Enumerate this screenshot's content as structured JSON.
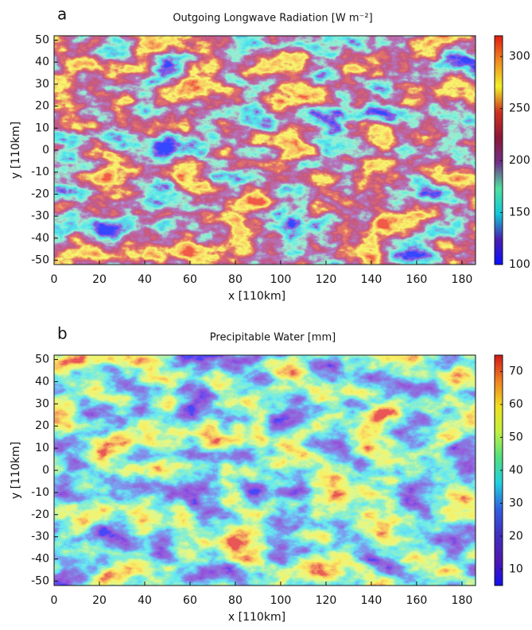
{
  "chart_data": [
    {
      "type": "heatmap",
      "panel_label": "a",
      "title": "Outgoing Longwave Radiation [W m⁻²]",
      "x_label": "x [110km]",
      "y_label": "y [110km]",
      "xlim": [
        0,
        186
      ],
      "xticks": [
        0,
        20,
        40,
        60,
        80,
        100,
        120,
        140,
        160,
        180
      ],
      "ylim": [
        -52,
        52
      ],
      "yticks": [
        -50,
        -40,
        -30,
        -20,
        -10,
        0,
        10,
        20,
        30,
        40,
        50
      ],
      "clim": [
        100,
        320
      ],
      "cticks": [
        100,
        150,
        200,
        250,
        300
      ],
      "colormap": [
        "#0a10ff",
        "#4a20b0",
        "#10c8d8",
        "#50e0a0",
        "#70308a",
        "#8c1838",
        "#d03020",
        "#f0f028",
        "#f08a20",
        "#e01a10"
      ]
    },
    {
      "type": "heatmap",
      "panel_label": "b",
      "title": "Precipitable Water [mm]",
      "x_label": "x [110km]",
      "y_label": "y [110km]",
      "xlim": [
        0,
        186
      ],
      "xticks": [
        0,
        20,
        40,
        60,
        80,
        100,
        120,
        140,
        160,
        180
      ],
      "ylim": [
        -52,
        52
      ],
      "yticks": [
        -50,
        -40,
        -30,
        -20,
        -10,
        0,
        10,
        20,
        30,
        40,
        50
      ],
      "clim": [
        5,
        75
      ],
      "cticks": [
        10,
        20,
        30,
        40,
        50,
        60,
        70
      ],
      "colormap": [
        "#1010f0",
        "#5018b0",
        "#4030c0",
        "#3060e0",
        "#20d0e0",
        "#50e080",
        "#c0f040",
        "#f0e020",
        "#f08020",
        "#d01818"
      ]
    }
  ]
}
